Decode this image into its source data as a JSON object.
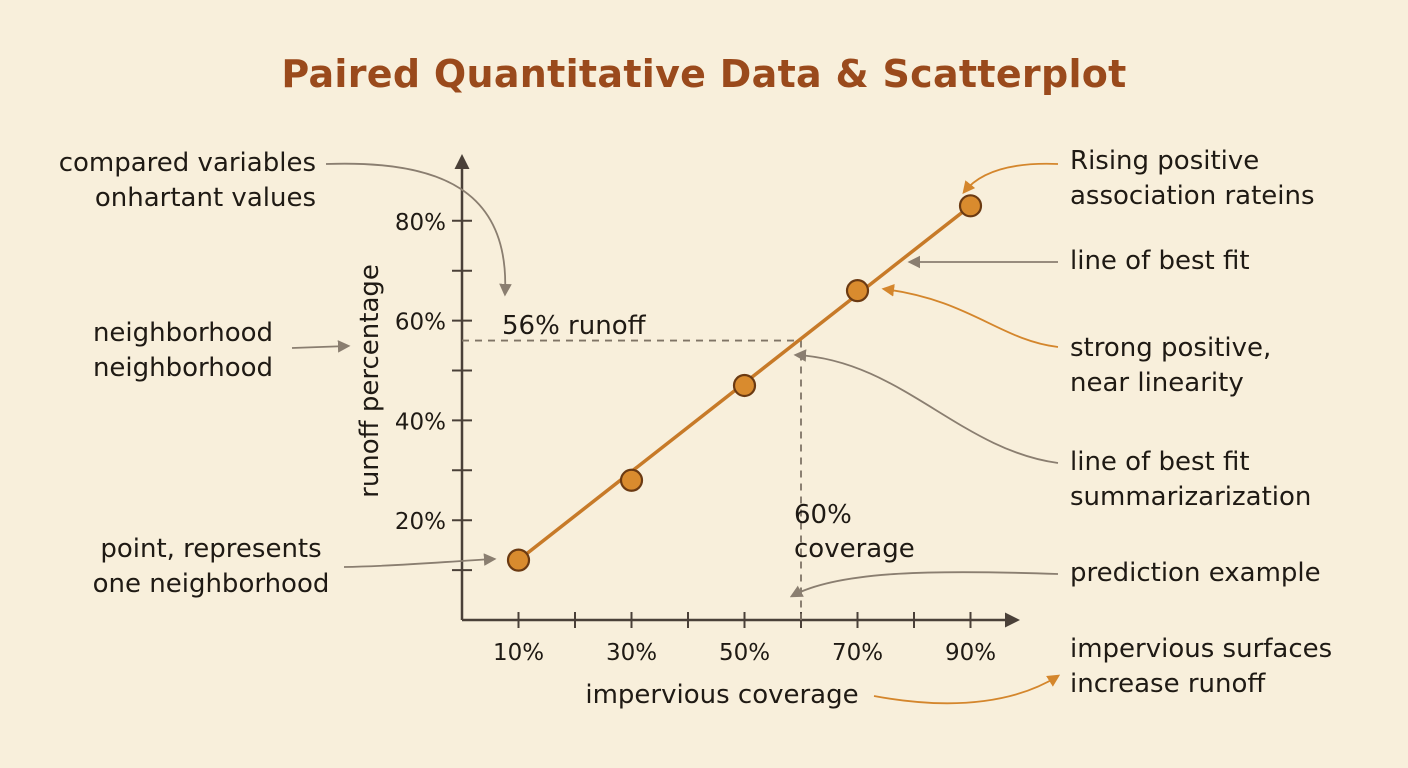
{
  "chart_data": {
    "type": "scatter",
    "title": "Paired Quantitative Data & Scatterplot",
    "xlabel": "impervious coverage",
    "ylabel": "runoff percentage",
    "xlim": [
      0,
      100
    ],
    "ylim": [
      0,
      90
    ],
    "x_ticks": [
      "10%",
      "30%",
      "50%",
      "70%",
      "90%"
    ],
    "x_tick_values": [
      10,
      30,
      50,
      70,
      90
    ],
    "y_ticks": [
      "20%",
      "40%",
      "60%",
      "80%"
    ],
    "y_tick_values": [
      20,
      40,
      60,
      80
    ],
    "grid": false,
    "points": [
      {
        "x": 10,
        "y": 12
      },
      {
        "x": 30,
        "y": 28
      },
      {
        "x": 50,
        "y": 47
      },
      {
        "x": 70,
        "y": 66
      },
      {
        "x": 90,
        "y": 83
      }
    ],
    "fit_line": {
      "x": [
        10,
        90
      ],
      "y": [
        12,
        83
      ]
    },
    "prediction": {
      "x": 60,
      "y": 56,
      "x_label": "60%\ncoverage",
      "y_label": "56% runoff"
    }
  },
  "annotations": {
    "compared_variables": [
      "compared variables",
      "onhartant values"
    ],
    "neighborhood": [
      "neighborhood",
      "neighborhood"
    ],
    "point_represents": [
      "point, represents",
      "one neighborhood"
    ],
    "rising_positive": [
      "Rising positive",
      "association rateins"
    ],
    "line_best_fit": "line of best fit",
    "strong_positive": [
      "strong positive,",
      "near linearity"
    ],
    "line_best_fit_summary": [
      "line of best fit",
      "summarizarization"
    ],
    "prediction_example": "prediction example",
    "impervious_increase": [
      "impervious surfaces",
      "increase runoff"
    ],
    "prediction_x_label": [
      "60%",
      "coverage"
    ],
    "prediction_y_label": "56% runoff"
  },
  "colors": {
    "background": "#f8efdb",
    "title": "#9a4a1c",
    "fit_line": "#c77a28",
    "point_fill": "#d98b2e",
    "point_stroke": "#6b3a12",
    "axis": "#4a4038",
    "arrow_gray": "#8a7e70",
    "arrow_orange": "#d4862c"
  }
}
